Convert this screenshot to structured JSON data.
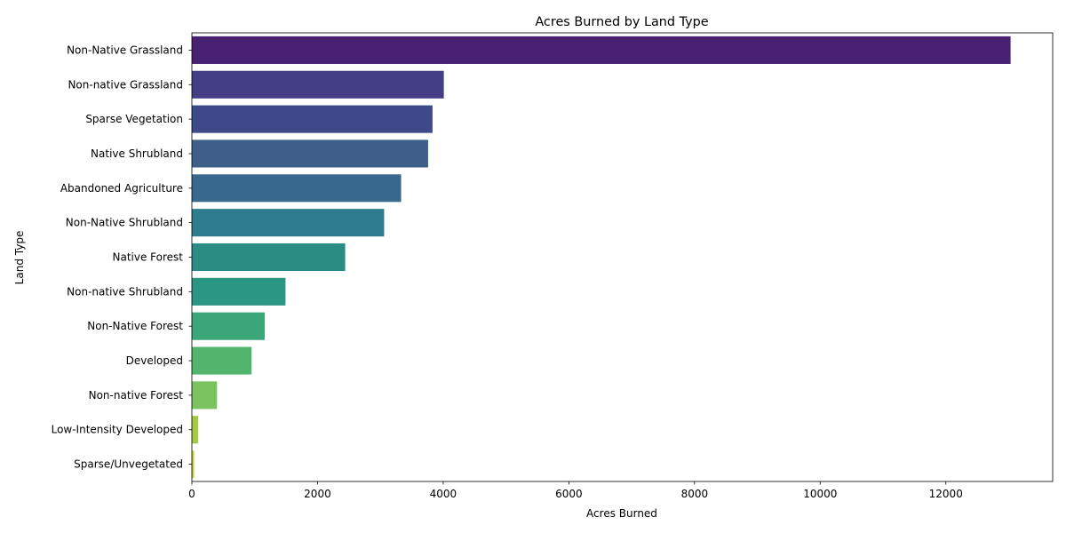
{
  "chart_data": {
    "type": "bar",
    "orientation": "horizontal",
    "title": "Acres Burned by Land Type",
    "xlabel": "Acres Burned",
    "ylabel": "Land Type",
    "xlim": [
      0,
      13700
    ],
    "xticks": [
      0,
      2000,
      4000,
      6000,
      8000,
      10000,
      12000
    ],
    "grid": false,
    "categories": [
      "Non-Native Grassland",
      "Non-native Grassland",
      "Sparse Vegetation",
      "Native Shrubland",
      "Abandoned Agriculture",
      "Non-Native Shrubland",
      "Native Forest",
      "Non-native Shrubland",
      "Non-Native Forest",
      "Developed",
      "Non-native Forest",
      "Low-Intensity Developed",
      "Sparse/Unvegetated"
    ],
    "values": [
      13030,
      4010,
      3830,
      3760,
      3330,
      3060,
      2440,
      1490,
      1160,
      950,
      400,
      100,
      35
    ],
    "colors": [
      "#482173",
      "#433e85",
      "#3e4989",
      "#3e5f8a",
      "#38688d",
      "#2d7d8e",
      "#2a8c83",
      "#2a9784",
      "#3ba677",
      "#52b46d",
      "#7ac35f",
      "#a2cb43",
      "#c8d43c"
    ]
  }
}
